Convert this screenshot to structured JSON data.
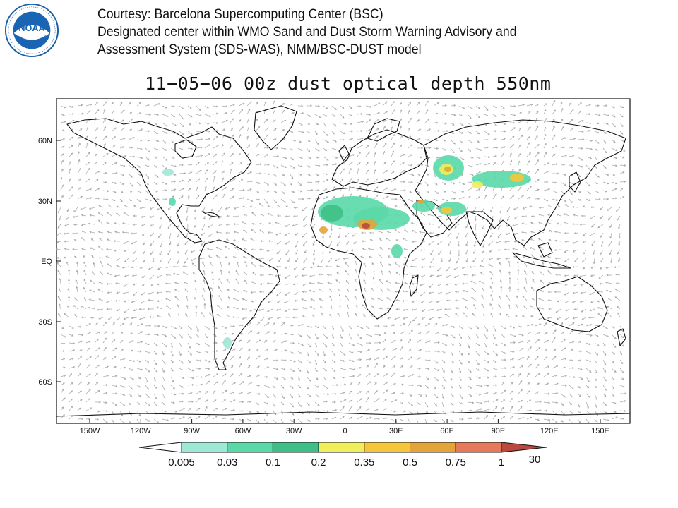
{
  "courtesy": {
    "line1": "Courtesy: Barcelona Supercomputing Center (BSC)",
    "line2": "Designated center within WMO Sand and Dust Storm Warning Advisory and",
    "line3": "Assessment System (SDS-WAS), NMM/BSC-DUST model"
  },
  "logo": {
    "text": "NOAA",
    "icon": "noaa-logo-icon"
  },
  "map": {
    "title": "11−05−06  00z dust optical depth 550nm",
    "lon_ticks": [
      "150W",
      "120W",
      "90W",
      "60W",
      "30W",
      "0",
      "30E",
      "60E",
      "90E",
      "120E",
      "150E"
    ],
    "lat_ticks": [
      "60N",
      "30N",
      "EQ",
      "30S",
      "60S"
    ]
  },
  "colorbar": {
    "labels": [
      "0.005",
      "0.03",
      "0.1",
      "0.2",
      "0.35",
      "0.5",
      "0.75",
      "1",
      "30"
    ],
    "colors": [
      "#9ee8d6",
      "#5ad8a8",
      "#3fbf86",
      "#f0ee5a",
      "#f5c63a",
      "#e3a43a",
      "#e57a5a",
      "#b8493e"
    ]
  }
}
